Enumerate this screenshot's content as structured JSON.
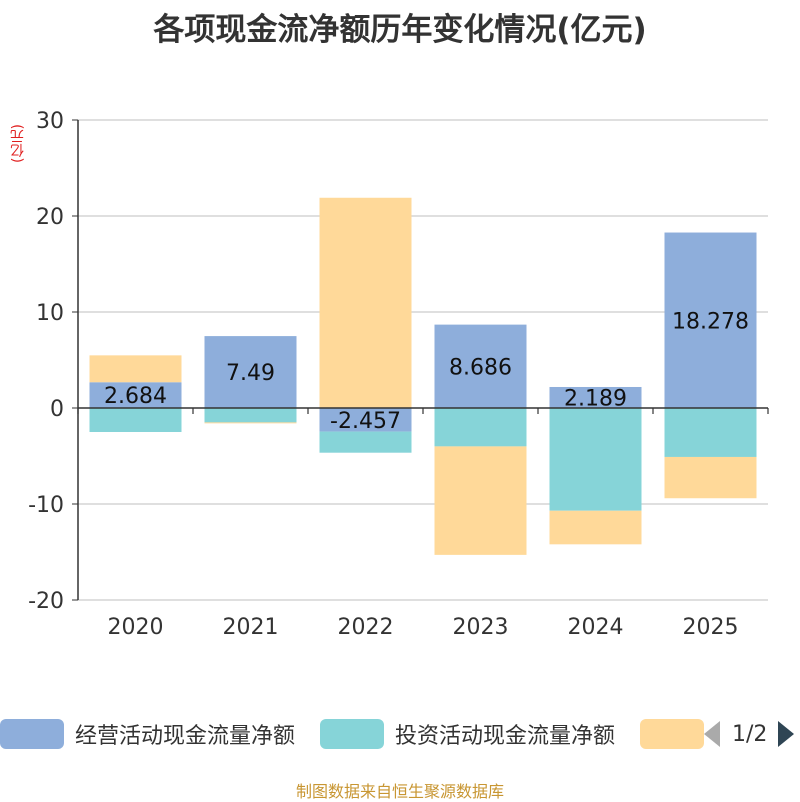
{
  "title": "各项现金流净额历年变化情况(亿元)",
  "unit_label": "(亿元)",
  "source": "制图数据来自恒生聚源数据库",
  "pager": {
    "text": "1/2"
  },
  "chart_data": {
    "type": "bar",
    "stacked": true,
    "categories": [
      "2020",
      "2021",
      "2022",
      "2023",
      "2024",
      "2025"
    ],
    "ylim": [
      -20,
      30
    ],
    "yticks": [
      30,
      20,
      10,
      0,
      -10,
      -20
    ],
    "grid": true,
    "series": [
      {
        "name": "经营活动现金流量净额",
        "color": "#8eaedb",
        "values": [
          2.684,
          7.49,
          -2.457,
          8.686,
          2.189,
          18.278
        ],
        "labels": [
          "2.684",
          "7.49",
          "-2.457",
          "8.686",
          "2.189",
          "18.278"
        ]
      },
      {
        "name": "投资活动现金流量净额",
        "color": "#86d4d8",
        "values": [
          -2.5,
          -1.5,
          -2.2,
          -4.0,
          -10.7,
          -5.1
        ]
      },
      {
        "name": "",
        "color": "#ffd999",
        "values": [
          2.8,
          -0.1,
          21.9,
          -11.3,
          -3.5,
          -4.3
        ]
      }
    ]
  }
}
